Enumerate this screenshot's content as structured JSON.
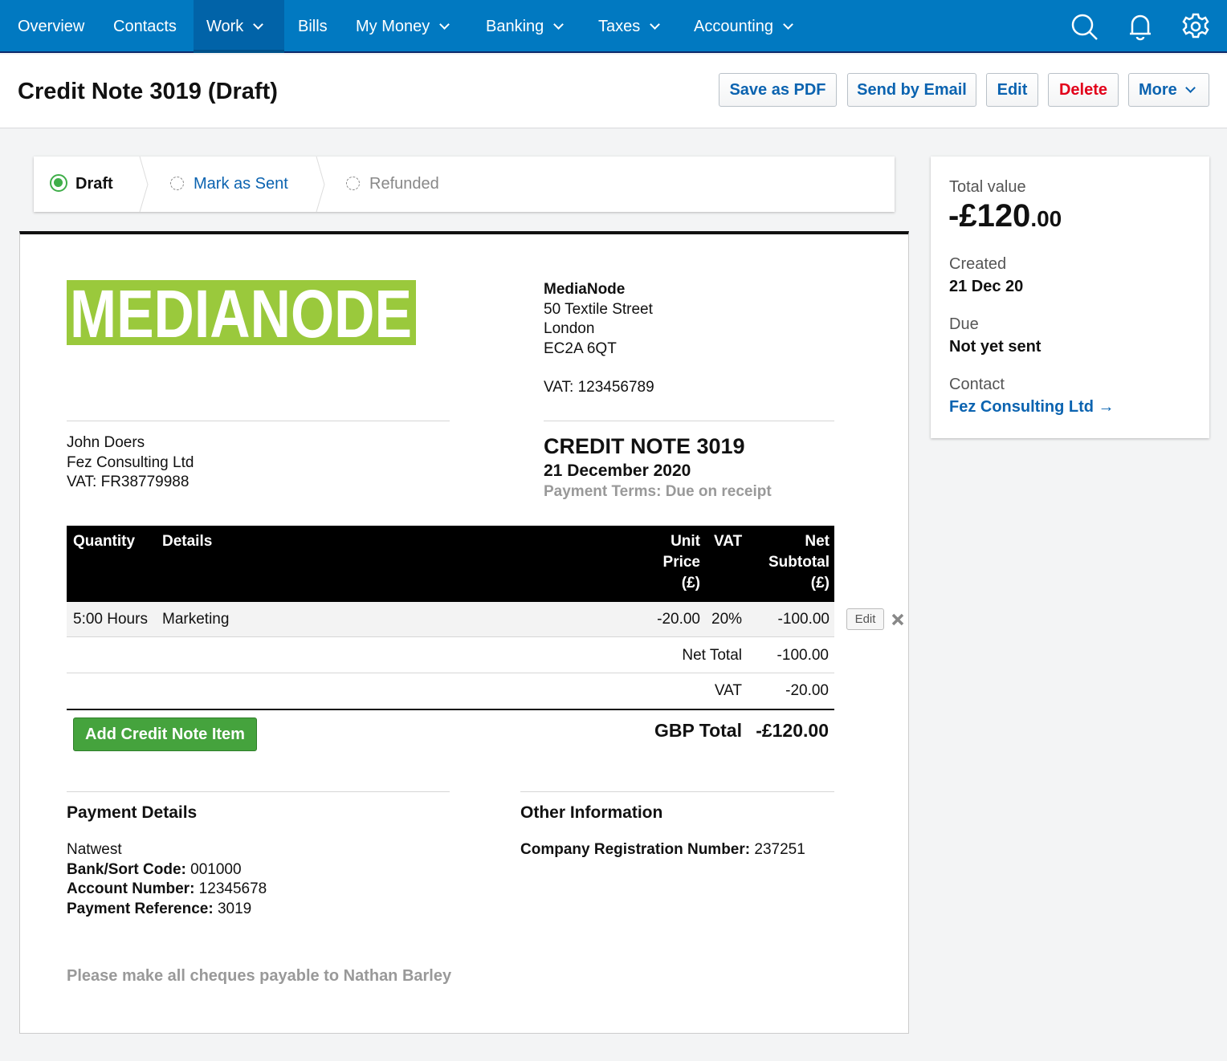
{
  "nav": {
    "items": [
      {
        "label": "Overview"
      },
      {
        "label": "Contacts"
      },
      {
        "label": "Work"
      },
      {
        "label": "Bills"
      },
      {
        "label": "My Money"
      },
      {
        "label": "Banking"
      },
      {
        "label": "Taxes"
      },
      {
        "label": "Accounting"
      }
    ],
    "brand_color": "#0179c1"
  },
  "header": {
    "title": "Credit Note 3019 (Draft)",
    "buttons": {
      "pdf": "Save as PDF",
      "email": "Send by Email",
      "edit": "Edit",
      "delete": "Delete",
      "more": "More"
    }
  },
  "steps": [
    {
      "label": "Draft",
      "state": "current"
    },
    {
      "label": "Mark as Sent"
    },
    {
      "label": "Refunded"
    }
  ],
  "summary": {
    "total_label": "Total value",
    "total_main": "-£120",
    "total_cents": ".00",
    "created_label": "Created",
    "created": "21 Dec 20",
    "due_label": "Due",
    "due": "Not yet sent",
    "contact_label": "Contact",
    "contact": "Fez Consulting Ltd →"
  },
  "document": {
    "logo_text": "MEDIANODE",
    "logo_color": "#9ac93c",
    "from": {
      "name": "MediaNode",
      "lines": [
        "50 Textile Street",
        "London",
        "EC2A 6QT"
      ],
      "vat": "VAT: 123456789"
    },
    "to": [
      "John Doers",
      "Fez Consulting Ltd",
      "VAT: FR38779988"
    ],
    "title": "CREDIT NOTE 3019",
    "date": "21 December 2020",
    "terms": "Payment Terms: Due on receipt",
    "columns": {
      "qty": "Quantity",
      "details": "Details",
      "unit": [
        "Unit",
        "Price",
        "(£)"
      ],
      "vat": "VAT",
      "net": [
        "Net",
        "Subtotal",
        "(£)"
      ]
    },
    "items": [
      {
        "qty": "5:00 Hours",
        "details": "Marketing",
        "unit": "-20.00",
        "vat": "20%",
        "net": "-100.00",
        "edit": "Edit"
      }
    ],
    "totals": {
      "net_label": "Net Total",
      "net": "-100.00",
      "vat_label": "VAT",
      "vat": "-20.00",
      "gbp_label": "GBP Total",
      "gbp": "-£120.00"
    },
    "add_item": "Add Credit Note Item",
    "payment": {
      "heading": "Payment Details",
      "bank": "Natwest",
      "sort_label": "Bank/Sort Code:",
      "sort": " 001000",
      "acct_label": "Account Number:",
      "acct": " 12345678",
      "ref_label": "Payment Reference:",
      "ref": " 3019"
    },
    "other": {
      "heading": "Other Information",
      "reg_label": "Company Registration Number:",
      "reg": " 237251"
    },
    "footer": "Please make all cheques payable to Nathan Barley"
  }
}
